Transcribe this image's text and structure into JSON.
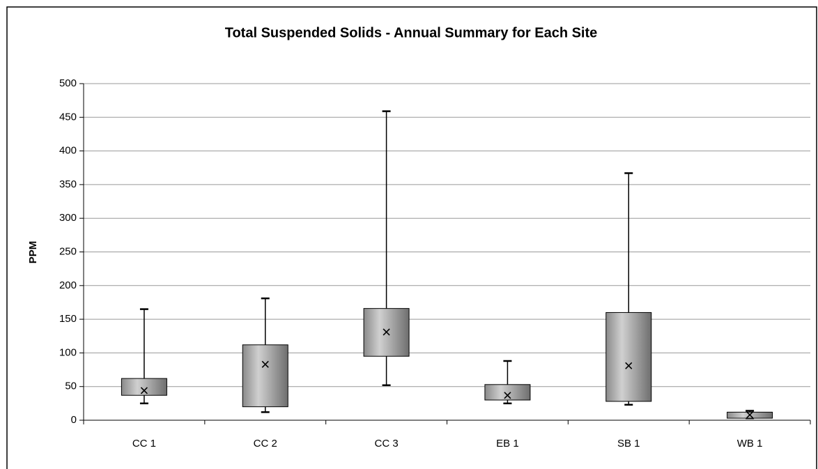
{
  "chart_data": {
    "type": "box",
    "title": "Total Suspended Solids - Annual Summary for Each Site",
    "y_label": "PPM",
    "categories": [
      "CC 1",
      "CC 2",
      "CC 3",
      "EB 1",
      "SB 1",
      "WB 1"
    ],
    "series": [
      {
        "name": "TSS",
        "color": "#999999",
        "min": [
          25,
          12,
          52,
          25,
          23,
          3
        ],
        "q1": [
          37,
          20,
          95,
          30,
          28,
          3
        ],
        "q3": [
          62,
          112,
          166,
          53,
          160,
          12
        ],
        "max": [
          165,
          181,
          459,
          88,
          367,
          14
        ],
        "mean": [
          44,
          83,
          131,
          37,
          81,
          8
        ]
      }
    ],
    "ylim": [
      0,
      500
    ],
    "yticks": [
      0,
      50,
      100,
      150,
      200,
      250,
      300,
      350,
      400,
      450,
      500
    ],
    "grid": true
  }
}
